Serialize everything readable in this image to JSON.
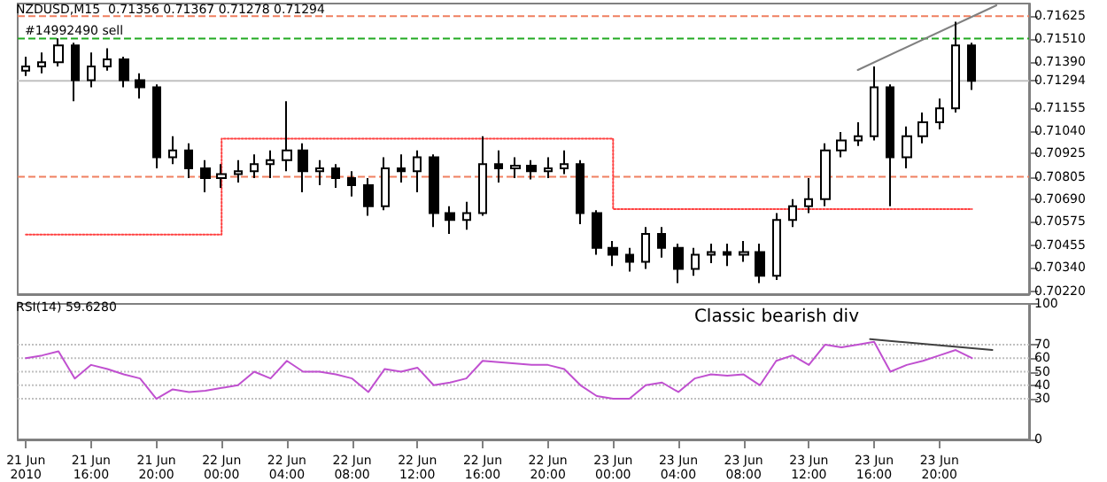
{
  "chart_data": [
    {
      "type": "candlestick",
      "title": "NZDUSD,M15  0.71356 0.71367 0.71278 0.71294",
      "tick_labels": "y",
      "xlim": [
        "2010-06-21T11:30",
        "2010-06-24T01:30"
      ],
      "ylim": [
        0.70206,
        0.71689
      ],
      "yticks": [
        {
          "value": 0.7022,
          "label": "0.70220"
        },
        {
          "value": 0.7034,
          "label": "0.70340"
        },
        {
          "value": 0.70455,
          "label": "0.70455"
        },
        {
          "value": 0.70575,
          "label": "0.70575"
        },
        {
          "value": 0.7069,
          "label": "0.70690"
        },
        {
          "value": 0.70805,
          "label": "0.70805"
        },
        {
          "value": 0.70925,
          "label": "0.70925"
        },
        {
          "value": 0.7104,
          "label": "0.71040"
        },
        {
          "value": 0.71155,
          "label": "0.71155"
        },
        {
          "value": 0.71294,
          "label": "0.71294"
        },
        {
          "value": 0.7139,
          "label": "0.71390"
        },
        {
          "value": 0.7151,
          "label": "0.71510"
        },
        {
          "value": 0.71625,
          "label": "0.71625"
        }
      ],
      "x": [
        "2010-06-21T12:00",
        "2010-06-21T13:00",
        "2010-06-21T14:00",
        "2010-06-21T15:00",
        "2010-06-21T16:00",
        "2010-06-21T17:00",
        "2010-06-21T18:00",
        "2010-06-21T19:00",
        "2010-06-21T20:00",
        "2010-06-21T21:00",
        "2010-06-21T22:00",
        "2010-06-21T23:00",
        "2010-06-22T00:00",
        "2010-06-22T01:00",
        "2010-06-22T02:00",
        "2010-06-22T03:00",
        "2010-06-22T04:00",
        "2010-06-22T05:00",
        "2010-06-22T06:00",
        "2010-06-22T07:00",
        "2010-06-22T08:00",
        "2010-06-22T09:00",
        "2010-06-22T10:00",
        "2010-06-22T11:00",
        "2010-06-22T12:00",
        "2010-06-22T13:00",
        "2010-06-22T14:00",
        "2010-06-22T15:00",
        "2010-06-22T16:00",
        "2010-06-22T17:00",
        "2010-06-22T18:00",
        "2010-06-22T19:00",
        "2010-06-22T20:00",
        "2010-06-22T21:00",
        "2010-06-22T22:00",
        "2010-06-22T23:00",
        "2010-06-23T00:00",
        "2010-06-23T01:00",
        "2010-06-23T02:00",
        "2010-06-23T03:00",
        "2010-06-23T04:00",
        "2010-06-23T05:00",
        "2010-06-23T06:00",
        "2010-06-23T07:00",
        "2010-06-23T08:00",
        "2010-06-23T09:00",
        "2010-06-23T10:00",
        "2010-06-23T11:00",
        "2010-06-23T12:00",
        "2010-06-23T13:00",
        "2010-06-23T14:00",
        "2010-06-23T15:00",
        "2010-06-23T16:00",
        "2010-06-23T17:00",
        "2010-06-23T18:00",
        "2010-06-23T19:00",
        "2010-06-23T20:00",
        "2010-06-23T21:00",
        "2010-06-23T22:00"
      ],
      "series": [
        {
          "color": "#000000",
          "ohlc": [
            [
              0.71347,
              0.71418,
              0.71319,
              0.71368
            ],
            [
              0.71368,
              0.71439,
              0.71333,
              0.7139
            ],
            [
              0.7139,
              0.71511,
              0.71368,
              0.71475
            ],
            [
              0.71475,
              0.71489,
              0.71191,
              0.71298
            ],
            [
              0.71298,
              0.71439,
              0.71262,
              0.71368
            ],
            [
              0.71368,
              0.71461,
              0.71347,
              0.71404
            ],
            [
              0.71404,
              0.71418,
              0.71262,
              0.71298
            ],
            [
              0.71298,
              0.71333,
              0.71204,
              0.71262
            ],
            [
              0.71262,
              0.71276,
              0.70848,
              0.70905
            ],
            [
              0.70905,
              0.71012,
              0.70869,
              0.7094
            ],
            [
              0.7094,
              0.70976,
              0.70798,
              0.70848
            ],
            [
              0.70848,
              0.7089,
              0.70726,
              0.70798
            ],
            [
              0.70798,
              0.70869,
              0.70748,
              0.70819
            ],
            [
              0.70819,
              0.7089,
              0.70776,
              0.70833
            ],
            [
              0.70833,
              0.70919,
              0.70798,
              0.70869
            ],
            [
              0.70869,
              0.7094,
              0.70798,
              0.7089
            ],
            [
              0.7089,
              0.71191,
              0.70833,
              0.7094
            ],
            [
              0.7094,
              0.70976,
              0.70726,
              0.70833
            ],
            [
              0.70833,
              0.7089,
              0.70762,
              0.70848
            ],
            [
              0.70848,
              0.70869,
              0.70748,
              0.70798
            ],
            [
              0.70798,
              0.70833,
              0.70705,
              0.70762
            ],
            [
              0.70762,
              0.70798,
              0.70606,
              0.70655
            ],
            [
              0.70655,
              0.70905,
              0.70634,
              0.70848
            ],
            [
              0.70848,
              0.70919,
              0.70776,
              0.70833
            ],
            [
              0.70833,
              0.7094,
              0.70726,
              0.70905
            ],
            [
              0.70905,
              0.70919,
              0.70549,
              0.7062
            ],
            [
              0.7062,
              0.70655,
              0.70513,
              0.70585
            ],
            [
              0.70585,
              0.70677,
              0.70535,
              0.7062
            ],
            [
              0.7062,
              0.71012,
              0.70606,
              0.70869
            ],
            [
              0.70869,
              0.7094,
              0.70776,
              0.70848
            ],
            [
              0.70848,
              0.70905,
              0.70798,
              0.70862
            ],
            [
              0.70862,
              0.7089,
              0.70791,
              0.70833
            ],
            [
              0.70833,
              0.70905,
              0.70798,
              0.70848
            ],
            [
              0.70848,
              0.7094,
              0.70819,
              0.70869
            ],
            [
              0.70869,
              0.7089,
              0.70563,
              0.7062
            ],
            [
              0.7062,
              0.70634,
              0.70407,
              0.70442
            ],
            [
              0.70442,
              0.70477,
              0.7035,
              0.70407
            ],
            [
              0.70407,
              0.70442,
              0.70321,
              0.70371
            ],
            [
              0.70371,
              0.70549,
              0.70335,
              0.70513
            ],
            [
              0.70513,
              0.70549,
              0.70392,
              0.70442
            ],
            [
              0.70442,
              0.70464,
              0.70263,
              0.70335
            ],
            [
              0.70335,
              0.70442,
              0.703,
              0.70407
            ],
            [
              0.70407,
              0.70464,
              0.70364,
              0.70421
            ],
            [
              0.70421,
              0.70464,
              0.7035,
              0.70407
            ],
            [
              0.70407,
              0.70477,
              0.70371,
              0.70421
            ],
            [
              0.70421,
              0.70464,
              0.70263,
              0.703
            ],
            [
              0.703,
              0.7062,
              0.70278,
              0.70585
            ],
            [
              0.70585,
              0.70691,
              0.70549,
              0.70655
            ],
            [
              0.70655,
              0.70798,
              0.7062,
              0.70691
            ],
            [
              0.70691,
              0.70976,
              0.70655,
              0.7094
            ],
            [
              0.7094,
              0.71033,
              0.70905,
              0.7099
            ],
            [
              0.7099,
              0.71083,
              0.70962,
              0.71012
            ],
            [
              0.71012,
              0.71368,
              0.7099,
              0.71262
            ],
            [
              0.71262,
              0.71276,
              0.70655,
              0.70905
            ],
            [
              0.70905,
              0.71062,
              0.70848,
              0.71012
            ],
            [
              0.71012,
              0.71133,
              0.70976,
              0.71083
            ],
            [
              0.71083,
              0.71204,
              0.71047,
              0.71154
            ],
            [
              0.71154,
              0.71596,
              0.71133,
              0.71475
            ],
            [
              0.71475,
              0.71489,
              0.71248,
              0.71294
            ]
          ]
        },
        {
          "type": "step",
          "color": "#ff4040",
          "line_style": "dotted",
          "x": [
            "2010-06-21T12:00",
            "2010-06-22T00:00",
            "2010-06-23T00:00",
            "2010-06-23T22:00"
          ],
          "values": [
            0.7051,
            0.71,
            0.7064,
            0.7064
          ]
        },
        {
          "type": "line",
          "color": "#808080",
          "x": [
            "2010-06-23T15:00",
            "2010-06-23T23:30"
          ],
          "values": [
            0.7135,
            0.7168
          ]
        }
      ],
      "ref_lines": [
        {
          "axis": "y",
          "value": 0.71625,
          "color": "#f08060",
          "line_style": "dashed"
        },
        {
          "axis": "y",
          "value": 0.7151,
          "color": "#22aa22",
          "line_style": "dashed",
          "label": "#14992490 sell"
        },
        {
          "axis": "y",
          "value": 0.71294,
          "color": "#c0c0c0",
          "line_style": "solid"
        },
        {
          "axis": "y",
          "value": 0.70805,
          "color": "#f08060",
          "line_style": "dashed"
        }
      ]
    },
    {
      "type": "line",
      "title": "RSI(14) 59.6280",
      "xlim": [
        "2010-06-21T11:30",
        "2010-06-24T01:30"
      ],
      "xticks": [
        {
          "value": "2010-06-21T12:00",
          "label": "21 Jun 2010"
        },
        {
          "value": "2010-06-21T16:00",
          "label": "21 Jun 16:00"
        },
        {
          "value": "2010-06-21T20:00",
          "label": "21 Jun 20:00"
        },
        {
          "value": "2010-06-22T00:00",
          "label": "22 Jun 00:00"
        },
        {
          "value": "2010-06-22T04:00",
          "label": "22 Jun 04:00"
        },
        {
          "value": "2010-06-22T08:00",
          "label": "22 Jun 08:00"
        },
        {
          "value": "2010-06-22T12:00",
          "label": "22 Jun 12:00"
        },
        {
          "value": "2010-06-22T16:00",
          "label": "22 Jun 16:00"
        },
        {
          "value": "2010-06-22T20:00",
          "label": "22 Jun 20:00"
        },
        {
          "value": "2010-06-23T00:00",
          "label": "23 Jun 00:00"
        },
        {
          "value": "2010-06-23T04:00",
          "label": "23 Jun 04:00"
        },
        {
          "value": "2010-06-23T08:00",
          "label": "23 Jun 08:00"
        },
        {
          "value": "2010-06-23T12:00",
          "label": "23 Jun 12:00"
        },
        {
          "value": "2010-06-23T16:00",
          "label": "23 Jun 16:00"
        },
        {
          "value": "2010-06-23T20:00",
          "label": "23 Jun 20:00"
        }
      ],
      "ylim": [
        0,
        100
      ],
      "yticks": [
        0,
        30,
        40,
        50,
        60,
        70,
        100
      ],
      "x": [
        "2010-06-21T12:00",
        "2010-06-21T13:00",
        "2010-06-21T14:00",
        "2010-06-21T15:00",
        "2010-06-21T16:00",
        "2010-06-21T17:00",
        "2010-06-21T18:00",
        "2010-06-21T19:00",
        "2010-06-21T20:00",
        "2010-06-21T21:00",
        "2010-06-21T22:00",
        "2010-06-21T23:00",
        "2010-06-22T00:00",
        "2010-06-22T01:00",
        "2010-06-22T02:00",
        "2010-06-22T03:00",
        "2010-06-22T04:00",
        "2010-06-22T05:00",
        "2010-06-22T06:00",
        "2010-06-22T07:00",
        "2010-06-22T08:00",
        "2010-06-22T09:00",
        "2010-06-22T10:00",
        "2010-06-22T11:00",
        "2010-06-22T12:00",
        "2010-06-22T13:00",
        "2010-06-22T14:00",
        "2010-06-22T15:00",
        "2010-06-22T16:00",
        "2010-06-22T17:00",
        "2010-06-22T18:00",
        "2010-06-22T19:00",
        "2010-06-22T20:00",
        "2010-06-22T21:00",
        "2010-06-22T22:00",
        "2010-06-22T23:00",
        "2010-06-23T00:00",
        "2010-06-23T01:00",
        "2010-06-23T02:00",
        "2010-06-23T03:00",
        "2010-06-23T04:00",
        "2010-06-23T05:00",
        "2010-06-23T06:00",
        "2010-06-23T07:00",
        "2010-06-23T08:00",
        "2010-06-23T09:00",
        "2010-06-23T10:00",
        "2010-06-23T11:00",
        "2010-06-23T12:00",
        "2010-06-23T13:00",
        "2010-06-23T14:00",
        "2010-06-23T15:00",
        "2010-06-23T16:00",
        "2010-06-23T17:00",
        "2010-06-23T18:00",
        "2010-06-23T19:00",
        "2010-06-23T20:00",
        "2010-06-23T21:00",
        "2010-06-23T22:00"
      ],
      "series": [
        {
          "color": "#c050d0",
          "values": [
            60,
            62,
            65,
            45,
            55,
            52,
            48,
            45,
            30,
            37,
            35,
            36,
            38,
            40,
            50,
            45,
            58,
            50,
            50,
            48,
            45,
            35,
            52,
            50,
            53,
            40,
            42,
            45,
            58,
            57,
            56,
            55,
            55,
            52,
            40,
            32,
            30,
            30,
            40,
            42,
            35,
            45,
            48,
            47,
            48,
            40,
            58,
            62,
            55,
            70,
            68,
            70,
            72,
            50,
            55,
            58,
            62,
            66,
            60
          ]
        },
        {
          "color": "#404040",
          "x": [
            "2010-06-23T15:45",
            "2010-06-23T23:15"
          ],
          "values": [
            74,
            66
          ]
        }
      ],
      "ref_lines": [
        {
          "axis": "y",
          "value": 30,
          "color": "#c0c0c0",
          "line_style": "dotted"
        },
        {
          "axis": "y",
          "value": 40,
          "color": "#c0c0c0",
          "line_style": "dotted"
        },
        {
          "axis": "y",
          "value": 50,
          "color": "#c0c0c0",
          "line_style": "dotted"
        },
        {
          "axis": "y",
          "value": 60,
          "color": "#c0c0c0",
          "line_style": "dotted"
        },
        {
          "axis": "y",
          "value": 70,
          "color": "#c0c0c0",
          "line_style": "dotted"
        }
      ],
      "annotations": [
        "Classic bearish div"
      ]
    }
  ]
}
